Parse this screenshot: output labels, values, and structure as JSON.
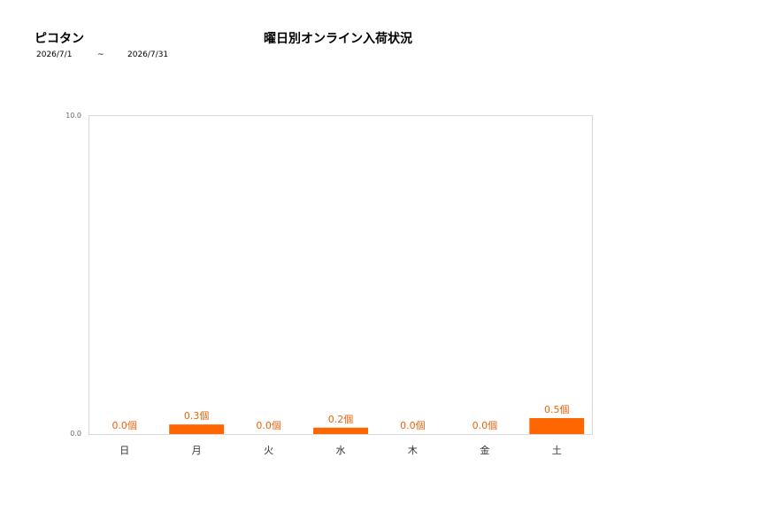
{
  "header": {
    "brand": "ピコタン",
    "date_from": "2026/7/1",
    "date_separator": "~",
    "date_to": "2026/7/31"
  },
  "chart_data": {
    "type": "bar",
    "title": "曜日別オンライン入荷状況",
    "categories": [
      "日",
      "月",
      "火",
      "水",
      "木",
      "金",
      "土"
    ],
    "values": [
      0.0,
      0.3,
      0.0,
      0.2,
      0.0,
      0.0,
      0.5
    ],
    "data_labels": [
      "0.0個",
      "0.3個",
      "0.0個",
      "0.2個",
      "0.0個",
      "0.0個",
      "0.5個"
    ],
    "y_ticks": [
      "0.0",
      "10.0"
    ],
    "ylim": [
      0,
      10
    ],
    "xlabel": "",
    "ylabel": "",
    "grid": false,
    "legend": "none",
    "colors": {
      "bar": "#ff6600",
      "data_label": "#e8640a",
      "axis": "#d9d9d9"
    }
  }
}
